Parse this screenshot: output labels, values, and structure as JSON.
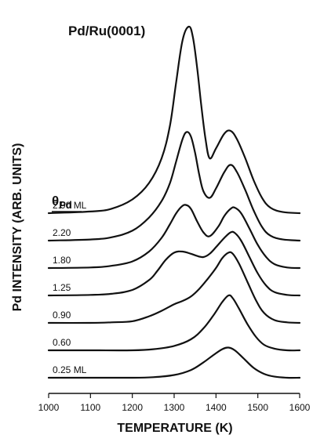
{
  "chart_data": {
    "type": "line",
    "title": "Pd/Ru(0001)",
    "xlabel": "TEMPERATURE (K)",
    "ylabel": "Pd INTENSITY (ARB. UNITS)",
    "legend_title": "θPd",
    "legend_title_main": "θ",
    "legend_title_sub": "Pd",
    "xlim": [
      1000,
      1600
    ],
    "xticks": [
      "1000",
      "1100",
      "1200",
      "1300",
      "1400",
      "1500",
      "1600"
    ],
    "y_units": "arbitrary",
    "stacked_offsets": true,
    "grid": false,
    "series": [
      {
        "name": "2.90 ML",
        "offset": 300,
        "x": [
          1000,
          1100,
          1150,
          1200,
          1240,
          1270,
          1290,
          1305,
          1320,
          1335,
          1345,
          1355,
          1365,
          1375,
          1385,
          1400,
          1420,
          1435,
          1450,
          1470,
          1490,
          1510,
          1530,
          1560,
          1600
        ],
        "y": [
          0,
          3,
          8,
          25,
          55,
          100,
          160,
          240,
          315,
          340,
          320,
          265,
          195,
          135,
          100,
          118,
          145,
          150,
          135,
          100,
          60,
          28,
          10,
          2,
          0
        ]
      },
      {
        "name": "2.20",
        "offset": 250,
        "x": [
          1000,
          1100,
          1150,
          1200,
          1240,
          1270,
          1290,
          1305,
          1320,
          1330,
          1340,
          1350,
          1360,
          1370,
          1385,
          1400,
          1420,
          1435,
          1450,
          1470,
          1490,
          1510,
          1530,
          1560,
          1600
        ],
        "y": [
          0,
          2,
          6,
          18,
          42,
          72,
          105,
          145,
          185,
          198,
          190,
          160,
          120,
          90,
          78,
          95,
          125,
          138,
          125,
          92,
          55,
          25,
          9,
          2,
          0
        ]
      },
      {
        "name": "1.80",
        "offset": 200,
        "x": [
          1000,
          1100,
          1150,
          1200,
          1240,
          1270,
          1290,
          1305,
          1318,
          1328,
          1340,
          1355,
          1370,
          1385,
          1405,
          1420,
          1435,
          1445,
          1460,
          1480,
          1500,
          1520,
          1540,
          1570,
          1600
        ],
        "y": [
          0,
          1,
          4,
          12,
          30,
          55,
          80,
          100,
          112,
          115,
          108,
          85,
          65,
          58,
          75,
          95,
          108,
          110,
          100,
          72,
          42,
          20,
          7,
          1,
          0
        ]
      },
      {
        "name": "1.25",
        "offset": 150,
        "x": [
          1000,
          1100,
          1150,
          1200,
          1240,
          1260,
          1280,
          1300,
          1320,
          1340,
          1355,
          1370,
          1385,
          1400,
          1420,
          1435,
          1445,
          1460,
          1480,
          1500,
          1520,
          1540,
          1570,
          1600
        ],
        "y": [
          0,
          1,
          3,
          10,
          28,
          45,
          65,
          78,
          80,
          76,
          72,
          70,
          76,
          88,
          105,
          115,
          114,
          100,
          70,
          40,
          18,
          6,
          1,
          0
        ]
      },
      {
        "name": "0.90",
        "offset": 100,
        "x": [
          1000,
          1100,
          1150,
          1200,
          1240,
          1270,
          1300,
          1320,
          1340,
          1360,
          1380,
          1400,
          1415,
          1430,
          1440,
          1455,
          1475,
          1495,
          1515,
          1540,
          1570,
          1600
        ],
        "y": [
          0,
          0,
          1,
          3,
          12,
          22,
          34,
          40,
          48,
          62,
          80,
          100,
          118,
          128,
          126,
          108,
          75,
          42,
          18,
          5,
          1,
          0
        ]
      },
      {
        "name": "0.60",
        "offset": 50,
        "x": [
          1000,
          1100,
          1200,
          1250,
          1300,
          1340,
          1370,
          1395,
          1415,
          1430,
          1440,
          1455,
          1475,
          1495,
          1515,
          1540,
          1570,
          1600
        ],
        "y": [
          0,
          0,
          0,
          2,
          8,
          20,
          40,
          65,
          88,
          100,
          95,
          76,
          48,
          25,
          10,
          3,
          0,
          0
        ]
      },
      {
        "name": "0.25 ML",
        "offset": 0,
        "x": [
          1000,
          1100,
          1200,
          1250,
          1300,
          1340,
          1370,
          1395,
          1415,
          1430,
          1445,
          1465,
          1490,
          1515,
          1540,
          1570,
          1600
        ],
        "y": [
          0,
          0,
          0,
          1,
          5,
          14,
          28,
          42,
          52,
          55,
          50,
          36,
          18,
          7,
          2,
          0,
          0
        ]
      }
    ]
  }
}
